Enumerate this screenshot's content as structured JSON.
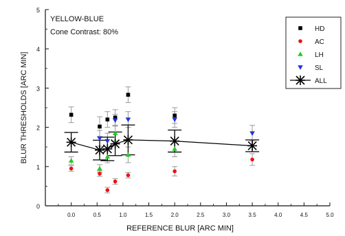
{
  "chart_data": {
    "type": "scatter",
    "annotations": [
      "YELLOW-BLUE",
      "Cone Contrast: 80%"
    ],
    "xlabel": "REFERENCE BLUR [ARC MIN]",
    "ylabel": "BLUR THRESHOLDS [ARC MIN]",
    "xlim": [
      -0.5,
      5.0
    ],
    "ylim": [
      0,
      5
    ],
    "xticks": [
      "0.0",
      "0.5",
      "1.0",
      "1.5",
      "2.0",
      "2.5",
      "3.0",
      "3.5",
      "4.0",
      "4.5",
      "5.0"
    ],
    "xtick_values": [
      0,
      0.5,
      1.0,
      1.5,
      2.0,
      2.5,
      3.0,
      3.5,
      4.0,
      4.5,
      5.0
    ],
    "yticks": [
      "0",
      "1",
      "2",
      "3",
      "4",
      "5"
    ],
    "ytick_values": [
      0,
      1,
      2,
      3,
      4,
      5
    ],
    "grid": false,
    "legend_position": "top-right",
    "series": [
      {
        "name": "HD",
        "color": "#000000",
        "marker": "square",
        "points": [
          {
            "x": 0.0,
            "y": 2.32,
            "err": 0.2
          },
          {
            "x": 0.55,
            "y": 2.02,
            "err": 0.25
          },
          {
            "x": 0.7,
            "y": 2.2,
            "err": 0.2
          },
          {
            "x": 0.85,
            "y": 2.25,
            "err": 0.2
          },
          {
            "x": 1.1,
            "y": 2.83,
            "err": 0.2
          },
          {
            "x": 2.0,
            "y": 2.3,
            "err": 0.2
          }
        ]
      },
      {
        "name": "AC",
        "color": "#ee1111",
        "marker": "circle",
        "points": [
          {
            "x": 0.0,
            "y": 0.95,
            "err": 0.07
          },
          {
            "x": 0.55,
            "y": 0.82,
            "err": 0.07
          },
          {
            "x": 0.7,
            "y": 0.4,
            "err": 0.07
          },
          {
            "x": 0.85,
            "y": 0.62,
            "err": 0.07
          },
          {
            "x": 1.1,
            "y": 0.78,
            "err": 0.07
          },
          {
            "x": 2.0,
            "y": 0.88,
            "err": 0.12
          },
          {
            "x": 3.5,
            "y": 1.18,
            "err": 0.15
          }
        ]
      },
      {
        "name": "LH",
        "color": "#22cc22",
        "marker": "triangle-up",
        "points": [
          {
            "x": 0.0,
            "y": 1.15,
            "err": 0.1
          },
          {
            "x": 0.55,
            "y": 0.95,
            "err": 0.1
          },
          {
            "x": 0.7,
            "y": 1.25,
            "err": 0.15
          },
          {
            "x": 0.85,
            "y": 1.85,
            "err": 0.2
          },
          {
            "x": 1.1,
            "y": 1.3,
            "err": 0.2
          },
          {
            "x": 2.0,
            "y": 1.45,
            "err": 0.2
          }
        ]
      },
      {
        "name": "SL",
        "color": "#2233dd",
        "marker": "triangle-down",
        "points": [
          {
            "x": 0.55,
            "y": 1.72,
            "err": 0.2
          },
          {
            "x": 0.7,
            "y": 1.65,
            "err": 0.2
          },
          {
            "x": 0.85,
            "y": 2.18,
            "err": 0.15
          },
          {
            "x": 1.1,
            "y": 2.2,
            "err": 0.2
          },
          {
            "x": 2.0,
            "y": 2.2,
            "err": 0.2
          },
          {
            "x": 3.5,
            "y": 1.85,
            "err": 0.2
          }
        ]
      },
      {
        "name": "ALL",
        "color": "#000000",
        "marker": "asterisk",
        "line": true,
        "points": [
          {
            "x": 0.0,
            "y": 1.62,
            "err": 0.25
          },
          {
            "x": 0.55,
            "y": 1.42,
            "err": 0.25
          },
          {
            "x": 0.7,
            "y": 1.45,
            "err": 0.3
          },
          {
            "x": 0.85,
            "y": 1.58,
            "err": 0.3
          },
          {
            "x": 1.1,
            "y": 1.68,
            "err": 0.38
          },
          {
            "x": 2.0,
            "y": 1.65,
            "err": 0.28
          },
          {
            "x": 3.5,
            "y": 1.53,
            "err": 0.15
          }
        ]
      }
    ]
  }
}
